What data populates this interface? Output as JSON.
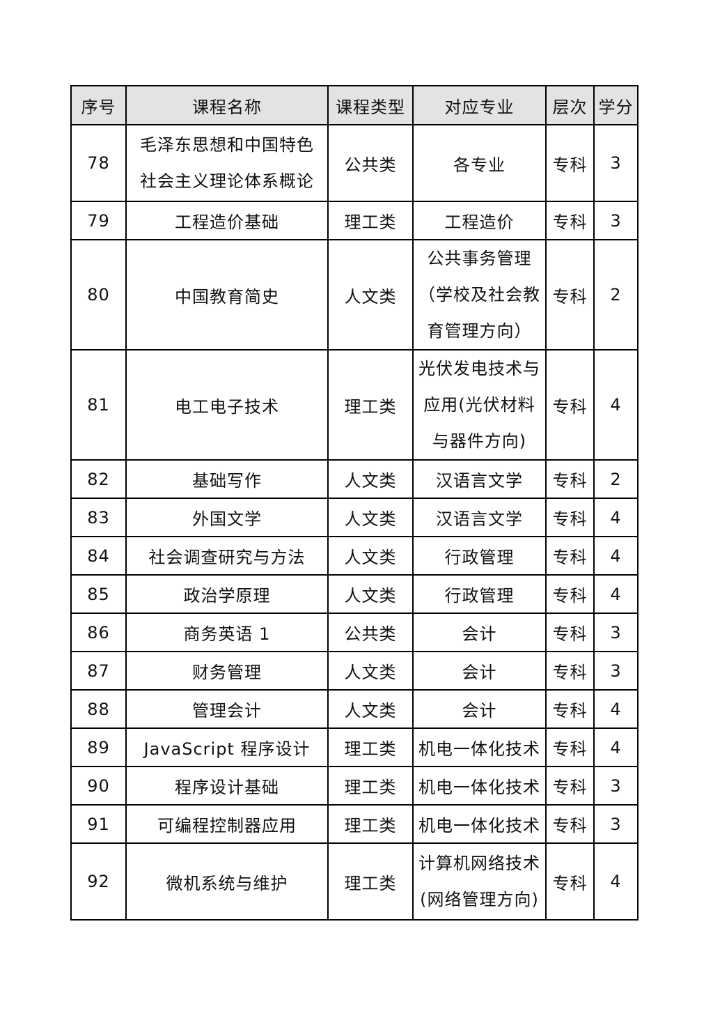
{
  "table": {
    "header_bg": "#e3e3e3",
    "border_color": "#000000",
    "columns": [
      {
        "key": "no",
        "label": "序号"
      },
      {
        "key": "course-name",
        "label": "课程名称"
      },
      {
        "key": "course-type",
        "label": "课程类型"
      },
      {
        "key": "major",
        "label": "对应专业"
      },
      {
        "key": "level",
        "label": "层次"
      },
      {
        "key": "credits",
        "label": "学分"
      }
    ],
    "rows": [
      {
        "no": "78",
        "name": [
          "毛泽东思想和中国特色",
          "社会主义理论体系概论"
        ],
        "type": "公共类",
        "major": [
          "各专业"
        ],
        "level": "专科",
        "credits": "3"
      },
      {
        "no": "79",
        "name": [
          "工程造价基础"
        ],
        "type": "理工类",
        "major": [
          "工程造价"
        ],
        "level": "专科",
        "credits": "3"
      },
      {
        "no": "80",
        "name": [
          "中国教育简史"
        ],
        "type": "人文类",
        "major": [
          "公共事务管理",
          "（学校及社会教",
          "育管理方向）"
        ],
        "level": "专科",
        "credits": "2"
      },
      {
        "no": "81",
        "name": [
          "电工电子技术"
        ],
        "type": "理工类",
        "major": [
          "光伏发电技术与",
          "应用(光伏材料",
          "与器件方向)"
        ],
        "level": "专科",
        "credits": "4"
      },
      {
        "no": "82",
        "name": [
          "基础写作"
        ],
        "type": "人文类",
        "major": [
          "汉语言文学"
        ],
        "level": "专科",
        "credits": "2"
      },
      {
        "no": "83",
        "name": [
          "外国文学"
        ],
        "type": "人文类",
        "major": [
          "汉语言文学"
        ],
        "level": "专科",
        "credits": "4"
      },
      {
        "no": "84",
        "name": [
          "社会调查研究与方法"
        ],
        "type": "人文类",
        "major": [
          "行政管理"
        ],
        "level": "专科",
        "credits": "4"
      },
      {
        "no": "85",
        "name": [
          "政治学原理"
        ],
        "type": "人文类",
        "major": [
          "行政管理"
        ],
        "level": "专科",
        "credits": "4"
      },
      {
        "no": "86",
        "name": [
          "商务英语 1"
        ],
        "type": "公共类",
        "major": [
          "会计"
        ],
        "level": "专科",
        "credits": "3"
      },
      {
        "no": "87",
        "name": [
          "财务管理"
        ],
        "type": "人文类",
        "major": [
          "会计"
        ],
        "level": "专科",
        "credits": "3"
      },
      {
        "no": "88",
        "name": [
          "管理会计"
        ],
        "type": "人文类",
        "major": [
          "会计"
        ],
        "level": "专科",
        "credits": "4"
      },
      {
        "no": "89",
        "name": [
          "JavaScript 程序设计"
        ],
        "type": "理工类",
        "major": [
          "机电一体化技术"
        ],
        "level": "专科",
        "credits": "4"
      },
      {
        "no": "90",
        "name": [
          "程序设计基础"
        ],
        "type": "理工类",
        "major": [
          "机电一体化技术"
        ],
        "level": "专科",
        "credits": "3"
      },
      {
        "no": "91",
        "name": [
          "可编程控制器应用"
        ],
        "type": "理工类",
        "major": [
          "机电一体化技术"
        ],
        "level": "专科",
        "credits": "3"
      },
      {
        "no": "92",
        "name": [
          "微机系统与维护"
        ],
        "type": "理工类",
        "major": [
          "计算机网络技术",
          "(网络管理方向)"
        ],
        "level": "专科",
        "credits": "4"
      }
    ]
  }
}
